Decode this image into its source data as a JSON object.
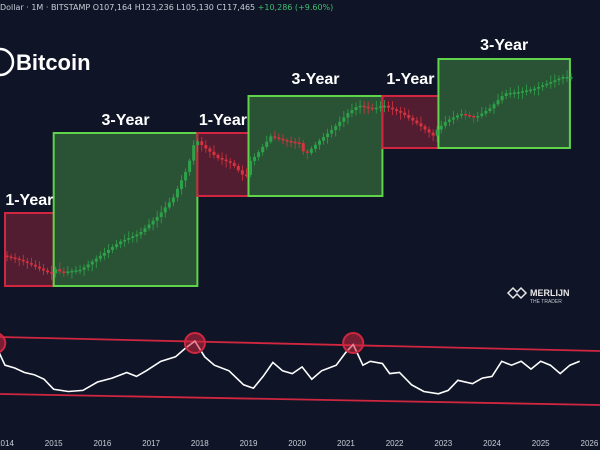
{
  "header": {
    "ticker_prefix": "Dollar · 1M · BITSTAMP",
    "o": "O107,164",
    "h": "H123,236",
    "l": "L105,130",
    "c": "C117,465",
    "change": "+10,286 (+9.60%)"
  },
  "brand": {
    "title": "Bitcoin",
    "watermark_line1": "MERLIJN",
    "watermark_line2": "THE TRADER"
  },
  "colors": {
    "background": "#0f1527",
    "bull_box_fill": "#2f5e3a",
    "bull_box_stroke": "#5fd34a",
    "bear_box_fill": "#6a1f35",
    "bear_box_stroke": "#d0263f",
    "candle_up": "#2ea24a",
    "candle_down": "#d8323f",
    "oscillator_line": "#ffffff",
    "channel_line": "#d0263f"
  },
  "chart_data": {
    "type": "candlestick",
    "title": "Bitcoin",
    "x_axis": {
      "tick_labels": [
        "2014",
        "2015",
        "2016",
        "2017",
        "2018",
        "2019",
        "2020",
        "2021",
        "2022",
        "2023",
        "2024",
        "2025",
        "2026"
      ]
    },
    "cycles": [
      {
        "label": "1-Year",
        "kind": "bear",
        "start": 2014.0,
        "end": 2015.0
      },
      {
        "label": "3-Year",
        "kind": "bull",
        "start": 2015.0,
        "end": 2017.95
      },
      {
        "label": "1-Year",
        "kind": "bear",
        "start": 2017.95,
        "end": 2019.0
      },
      {
        "label": "3-Year",
        "kind": "bull",
        "start": 2019.0,
        "end": 2021.75
      },
      {
        "label": "1-Year",
        "kind": "bear",
        "start": 2021.75,
        "end": 2022.9
      },
      {
        "label": "3-Year",
        "kind": "bull",
        "start": 2022.9,
        "end": 2025.6
      }
    ],
    "price_path": [
      [
        2014.0,
        0.38
      ],
      [
        2014.3,
        0.32
      ],
      [
        2014.6,
        0.22
      ],
      [
        2014.9,
        0.1
      ],
      [
        2015.2,
        0.04
      ],
      [
        2015.6,
        0.06
      ],
      [
        2016.0,
        0.16
      ],
      [
        2016.4,
        0.26
      ],
      [
        2016.8,
        0.32
      ],
      [
        2017.2,
        0.45
      ],
      [
        2017.5,
        0.58
      ],
      [
        2017.8,
        0.8
      ],
      [
        2017.95,
        1.0
      ],
      [
        2018.1,
        0.86
      ],
      [
        2018.4,
        0.62
      ],
      [
        2018.7,
        0.5
      ],
      [
        2018.95,
        0.24
      ],
      [
        2019.2,
        0.38
      ],
      [
        2019.5,
        0.6
      ],
      [
        2019.8,
        0.55
      ],
      [
        2020.1,
        0.52
      ],
      [
        2020.2,
        0.38
      ],
      [
        2020.5,
        0.55
      ],
      [
        2020.8,
        0.7
      ],
      [
        2021.1,
        0.88
      ],
      [
        2021.3,
        0.96
      ],
      [
        2021.6,
        0.92
      ],
      [
        2021.75,
        0.95
      ],
      [
        2021.9,
        0.86
      ],
      [
        2022.2,
        0.7
      ],
      [
        2022.5,
        0.44
      ],
      [
        2022.85,
        0.1
      ],
      [
        2023.1,
        0.25
      ],
      [
        2023.4,
        0.35
      ],
      [
        2023.7,
        0.3
      ],
      [
        2024.0,
        0.42
      ],
      [
        2024.3,
        0.62
      ],
      [
        2024.6,
        0.64
      ],
      [
        2024.9,
        0.68
      ],
      [
        2025.2,
        0.76
      ],
      [
        2025.5,
        0.84
      ]
    ],
    "oscillator": {
      "peaks_marked": [
        2013.8,
        2017.9,
        2021.15
      ],
      "values": [
        [
          2013.8,
          0.92
        ],
        [
          2014.0,
          0.55
        ],
        [
          2014.2,
          0.5
        ],
        [
          2014.4,
          0.42
        ],
        [
          2014.6,
          0.38
        ],
        [
          2014.8,
          0.3
        ],
        [
          2015.0,
          0.12
        ],
        [
          2015.3,
          0.08
        ],
        [
          2015.6,
          0.1
        ],
        [
          2015.9,
          0.25
        ],
        [
          2016.2,
          0.32
        ],
        [
          2016.5,
          0.42
        ],
        [
          2016.7,
          0.35
        ],
        [
          2016.9,
          0.45
        ],
        [
          2017.2,
          0.62
        ],
        [
          2017.5,
          0.7
        ],
        [
          2017.7,
          0.85
        ],
        [
          2017.9,
          0.98
        ],
        [
          2018.1,
          0.7
        ],
        [
          2018.3,
          0.55
        ],
        [
          2018.6,
          0.45
        ],
        [
          2018.9,
          0.2
        ],
        [
          2019.1,
          0.14
        ],
        [
          2019.3,
          0.35
        ],
        [
          2019.5,
          0.6
        ],
        [
          2019.7,
          0.45
        ],
        [
          2019.9,
          0.4
        ],
        [
          2020.1,
          0.52
        ],
        [
          2020.3,
          0.3
        ],
        [
          2020.5,
          0.45
        ],
        [
          2020.8,
          0.55
        ],
        [
          2021.0,
          0.78
        ],
        [
          2021.15,
          0.92
        ],
        [
          2021.35,
          0.55
        ],
        [
          2021.5,
          0.62
        ],
        [
          2021.75,
          0.58
        ],
        [
          2021.9,
          0.4
        ],
        [
          2022.1,
          0.42
        ],
        [
          2022.35,
          0.2
        ],
        [
          2022.6,
          0.08
        ],
        [
          2022.9,
          0.04
        ],
        [
          2023.1,
          0.1
        ],
        [
          2023.3,
          0.28
        ],
        [
          2023.6,
          0.22
        ],
        [
          2023.8,
          0.32
        ],
        [
          2024.0,
          0.35
        ],
        [
          2024.2,
          0.62
        ],
        [
          2024.4,
          0.55
        ],
        [
          2024.6,
          0.62
        ],
        [
          2024.8,
          0.48
        ],
        [
          2025.0,
          0.62
        ],
        [
          2025.2,
          0.55
        ],
        [
          2025.4,
          0.4
        ],
        [
          2025.6,
          0.55
        ],
        [
          2025.8,
          0.62
        ]
      ]
    }
  }
}
